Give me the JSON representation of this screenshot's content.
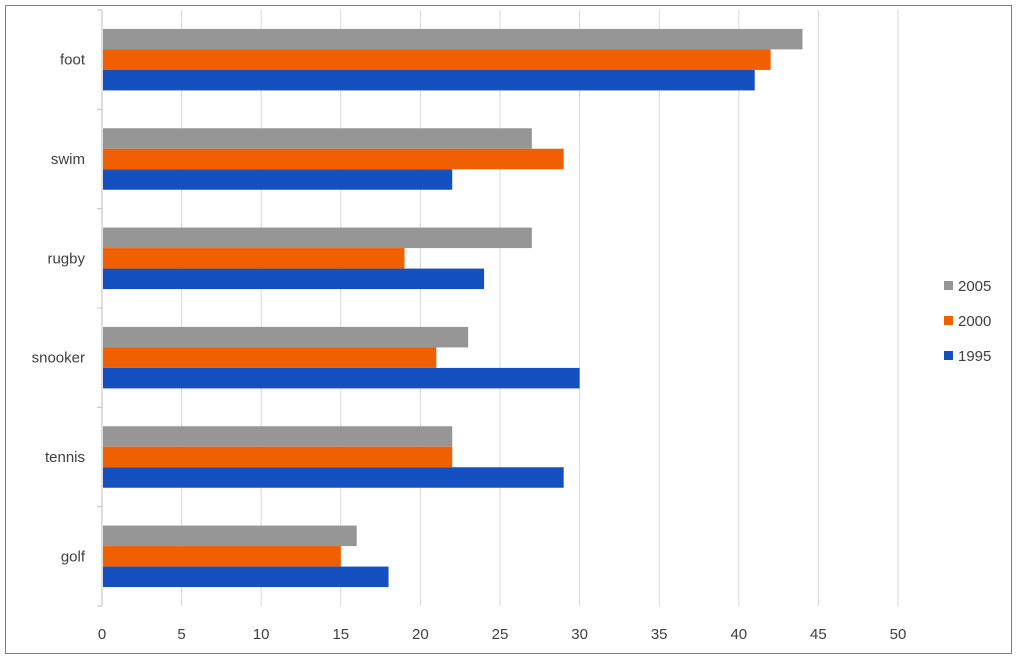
{
  "chart_data": {
    "type": "bar",
    "orientation": "horizontal",
    "title": "",
    "xlabel": "",
    "ylabel": "",
    "categories": [
      "foot",
      "swim",
      "rugby",
      "snooker",
      "tennis",
      "golf"
    ],
    "series": [
      {
        "name": "2005",
        "color": "#969696",
        "values": [
          44,
          27,
          27,
          23,
          22,
          16
        ]
      },
      {
        "name": "2000",
        "color": "#F05F00",
        "values": [
          42,
          29,
          19,
          21,
          22,
          15
        ]
      },
      {
        "name": "1995",
        "color": "#1450C0",
        "values": [
          41,
          22,
          24,
          30,
          29,
          18
        ]
      }
    ],
    "xlim": [
      0,
      50
    ],
    "xticks": [
      "0",
      "5",
      "10",
      "15",
      "20",
      "25",
      "30",
      "35",
      "40",
      "45",
      "50"
    ],
    "grid": true,
    "legend_position": "right"
  }
}
